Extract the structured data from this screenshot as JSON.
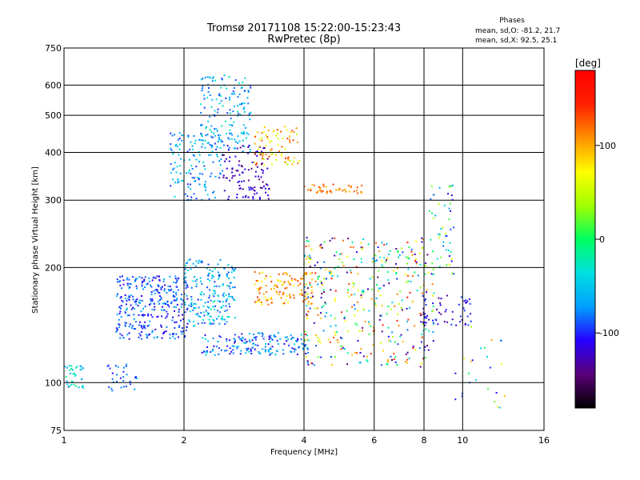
{
  "chart_data": {
    "type": "scatter",
    "title": "Tromsø 20171108 15:22:00-15:23:43",
    "subtitle": "RwPretec (8p)",
    "xlabel": "Frequency [MHz]",
    "ylabel": "Stationary phase Virtual Height [km]",
    "x_scale": "log",
    "y_scale": "log",
    "xlim": [
      1,
      16
    ],
    "ylim": [
      75,
      750
    ],
    "x_ticks": [
      1,
      2,
      4,
      6,
      8,
      10,
      16
    ],
    "y_ticks": [
      75,
      100,
      200,
      300,
      400,
      500,
      600,
      750
    ],
    "grid": true,
    "stats": {
      "heading": "Phases",
      "line1": "mean, sd,O: -81.2, 21.7",
      "line2": "mean, sd,X:  92.5, 25.1"
    },
    "colorbar": {
      "label": "[deg]",
      "min": -180,
      "max": 180,
      "ticks": [
        "100",
        "0",
        "-100"
      ],
      "tick_values": [
        100,
        0,
        -100
      ],
      "colors": [
        "#000000",
        "#5a0078",
        "#2600ff",
        "#00a0ff",
        "#00e0e0",
        "#00ff60",
        "#a0ff00",
        "#ffff00",
        "#ff9000",
        "#ff2000",
        "#ff0000"
      ]
    },
    "clusters": [
      {
        "f": [
          1.0,
          1.12
        ],
        "h": [
          96,
          112
        ],
        "phase": [
          -90,
          -10
        ],
        "n": 35
      },
      {
        "f": [
          1.28,
          1.55
        ],
        "h": [
          95,
          112
        ],
        "phase": [
          -110,
          -70
        ],
        "n": 30
      },
      {
        "f": [
          1.35,
          2.05
        ],
        "h": [
          130,
          190
        ],
        "phase": [
          -120,
          -60
        ],
        "n": 320
      },
      {
        "f": [
          2.0,
          2.7
        ],
        "h": [
          140,
          210
        ],
        "phase": [
          -100,
          -20
        ],
        "n": 200
      },
      {
        "f": [
          1.85,
          2.5
        ],
        "h": [
          300,
          450
        ],
        "phase": [
          -100,
          -30
        ],
        "n": 140
      },
      {
        "f": [
          2.2,
          2.95
        ],
        "h": [
          400,
          640
        ],
        "phase": [
          -100,
          -20
        ],
        "n": 160
      },
      {
        "f": [
          2.5,
          3.3
        ],
        "h": [
          300,
          420
        ],
        "phase": [
          -150,
          -100
        ],
        "n": 110
      },
      {
        "f": [
          3.0,
          3.9
        ],
        "h": [
          370,
          470
        ],
        "phase": [
          40,
          140
        ],
        "n": 80
      },
      {
        "f": [
          2.2,
          4.1
        ],
        "h": [
          118,
          135
        ],
        "phase": [
          -120,
          -40
        ],
        "n": 170
      },
      {
        "f": [
          3.0,
          4.2
        ],
        "h": [
          160,
          195
        ],
        "phase": [
          70,
          140
        ],
        "n": 120
      },
      {
        "f": [
          4.0,
          5.6
        ],
        "h": [
          312,
          330
        ],
        "phase": [
          90,
          140
        ],
        "n": 45
      },
      {
        "f": [
          4.0,
          8.5
        ],
        "h": [
          110,
          240
        ],
        "phase": [
          -150,
          150
        ],
        "n": 420
      },
      {
        "f": [
          7.8,
          10.6
        ],
        "h": [
          140,
          170
        ],
        "phase": [
          -140,
          -90
        ],
        "n": 60
      },
      {
        "f": [
          8.2,
          9.5
        ],
        "h": [
          190,
          330
        ],
        "phase": [
          -120,
          60
        ],
        "n": 50
      },
      {
        "f": [
          9.5,
          13.0
        ],
        "h": [
          85,
          140
        ],
        "phase": [
          -120,
          120
        ],
        "n": 25
      }
    ]
  }
}
